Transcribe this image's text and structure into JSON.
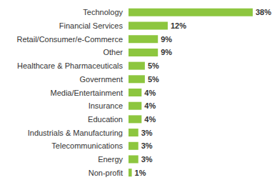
{
  "chart_data": {
    "type": "bar",
    "orientation": "horizontal",
    "categories": [
      "Technology",
      "Financial Services",
      "Retail/Consumer/e-Commerce",
      "Other",
      "Healthcare & Pharmaceuticals",
      "Government",
      "Media/Entertainment",
      "Insurance",
      "Education",
      "Industrials & Manufacturing",
      "Telecommunications",
      "Energy",
      "Non-profit"
    ],
    "values": [
      38,
      12,
      9,
      9,
      5,
      5,
      4,
      4,
      4,
      3,
      3,
      3,
      1
    ],
    "value_labels": [
      "38%",
      "12%",
      "9%",
      "9%",
      "5%",
      "5%",
      "4%",
      "4%",
      "4%",
      "3%",
      "3%",
      "3%",
      "1%"
    ],
    "color": "#8dc63f",
    "xlim": [
      0,
      38
    ],
    "grid": false,
    "data_labels": true,
    "tick_labels": "y"
  }
}
